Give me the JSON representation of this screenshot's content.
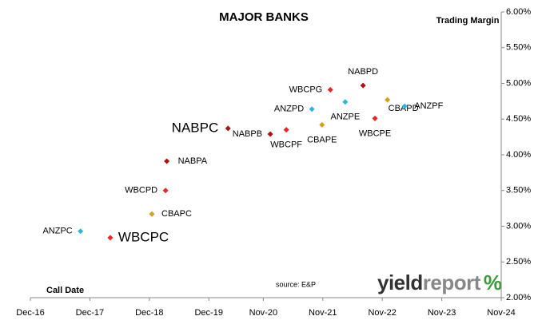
{
  "chart_data": {
    "type": "scatter",
    "title": "MAJOR BANKS",
    "y_axis_title": "Trading Margin",
    "x_axis_title": "Call Date",
    "source": "source: E&P",
    "logo": [
      "yield",
      "report",
      "%"
    ],
    "xlim": [
      2016.917,
      2024.833
    ],
    "xticks": [
      {
        "value": 2016.917,
        "label": "Dec-16"
      },
      {
        "value": 2017.917,
        "label": "Dec-17"
      },
      {
        "value": 2018.917,
        "label": "Dec-18"
      },
      {
        "value": 2019.917,
        "label": "Dec-19"
      },
      {
        "value": 2020.833,
        "label": "Nov-20"
      },
      {
        "value": 2021.833,
        "label": "Nov-21"
      },
      {
        "value": 2022.833,
        "label": "Nov-22"
      },
      {
        "value": 2023.833,
        "label": "Nov-23"
      },
      {
        "value": 2024.833,
        "label": "Nov-24"
      }
    ],
    "ylim": [
      2,
      6
    ],
    "yticks": [
      {
        "value": 2,
        "label": "2.00%"
      },
      {
        "value": 2.5,
        "label": "2.50%"
      },
      {
        "value": 3,
        "label": "3.00%"
      },
      {
        "value": 3.5,
        "label": "3.50%"
      },
      {
        "value": 4,
        "label": "4.00%"
      },
      {
        "value": 4.5,
        "label": "4.50%"
      },
      {
        "value": 5,
        "label": "5.00%"
      },
      {
        "value": 5.5,
        "label": "5.50%"
      },
      {
        "value": 6,
        "label": "6.00%"
      }
    ],
    "point_labels": [
      "ANZPC",
      "WBCPC",
      "CBAPC",
      "WBCPD",
      "NABPA",
      "NABPC",
      "NABPB",
      "WBCPF",
      "CBAPE",
      "ANZPD",
      "WBCPG",
      "ANZPE",
      "NABPD",
      "WBCPE",
      "CBAPD",
      "ANZPF"
    ],
    "x": [
      2017.76,
      2018.26,
      2018.96,
      2019.19,
      2019.21,
      2020.24,
      2020.95,
      2021.22,
      2021.82,
      2021.65,
      2021.96,
      2022.21,
      2022.51,
      2022.71,
      2022.92,
      2023.21
    ],
    "values": [
      2.93,
      2.84,
      3.17,
      3.5,
      3.91,
      4.37,
      4.29,
      4.35,
      4.42,
      4.64,
      4.91,
      4.74,
      4.97,
      4.51,
      4.77,
      4.68
    ],
    "point_colors": [
      "#29b6e0",
      "#ee2222",
      "#d4a017",
      "#ee2222",
      "#b01010",
      "#b01010",
      "#b01010",
      "#ee2222",
      "#d4a017",
      "#29b6e0",
      "#ee2222",
      "#29b6e0",
      "#b01010",
      "#ee2222",
      "#d4a017",
      "#29b6e0"
    ]
  }
}
